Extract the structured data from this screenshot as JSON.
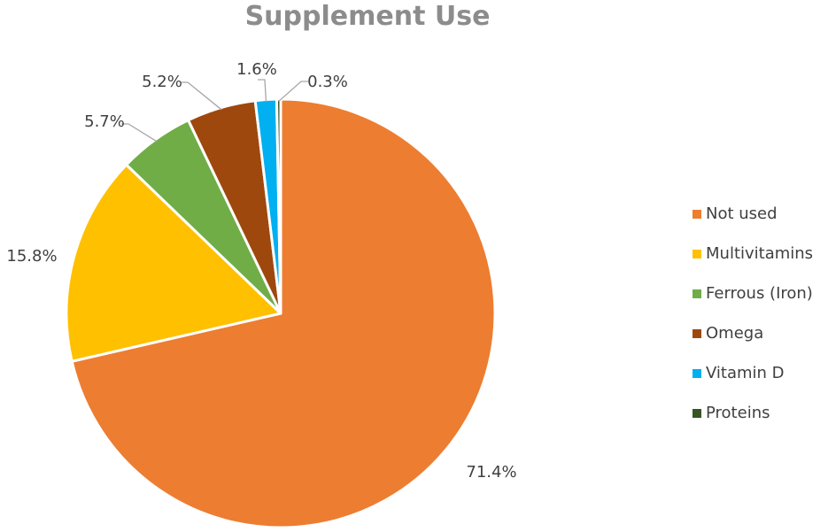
{
  "chart_data": {
    "type": "pie",
    "title": "Supplement Use",
    "legend_position": "right",
    "slices": [
      {
        "label": "Not used",
        "value": 71.4,
        "display": "71.4%",
        "color": "#ED7D31"
      },
      {
        "label": "Multivitamins",
        "value": 15.8,
        "display": "15.8%",
        "color": "#FFC000"
      },
      {
        "label": "Ferrous (Iron)",
        "value": 5.7,
        "display": "5.7%",
        "color": "#70AD47"
      },
      {
        "label": "Omega",
        "value": 5.2,
        "display": "5.2%",
        "color": "#9E480E"
      },
      {
        "label": "Vitamin D",
        "value": 1.6,
        "display": "1.6%",
        "color": "#00B0F0"
      },
      {
        "label": "Proteins",
        "value": 0.3,
        "display": "0.3%",
        "color": "#375623"
      }
    ]
  }
}
